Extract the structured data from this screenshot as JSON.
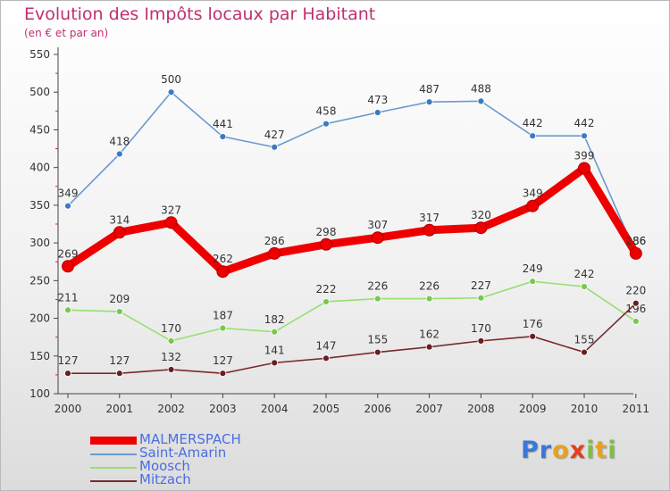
{
  "header": {
    "title": "Evolution des Impôts locaux par Habitant",
    "subtitle": "(en € et par an)"
  },
  "brand": {
    "letters": [
      {
        "ch": "P",
        "color": "#3a78d8"
      },
      {
        "ch": "r",
        "color": "#3a78d8"
      },
      {
        "ch": "o",
        "color": "#e8a020"
      },
      {
        "ch": "x",
        "color": "#e04020"
      },
      {
        "ch": "i",
        "color": "#7cc040"
      },
      {
        "ch": "t",
        "color": "#e8a020"
      },
      {
        "ch": "i",
        "color": "#7cc040"
      }
    ]
  },
  "chart_data": {
    "type": "line",
    "title": "Evolution des Impôts locaux par Habitant",
    "subtitle": "(en € et par an)",
    "xlabel": "",
    "ylabel": "",
    "ylim": [
      100,
      550
    ],
    "yticks": [
      100,
      150,
      200,
      250,
      300,
      350,
      400,
      450,
      500,
      550
    ],
    "grid": false,
    "legend_position": "bottom-left",
    "categories": [
      "2000",
      "2001",
      "2002",
      "2003",
      "2004",
      "2005",
      "2006",
      "2007",
      "2008",
      "2009",
      "2010",
      "2011"
    ],
    "series": [
      {
        "name": "MALMERSPACH",
        "color": "#ee0000",
        "thick": true,
        "values": [
          269,
          314,
          327,
          262,
          286,
          298,
          307,
          317,
          320,
          349,
          399,
          286
        ]
      },
      {
        "name": "Saint-Amarin",
        "color": "#6a9ad0",
        "marker": "#3a7ac0",
        "thick": false,
        "values": [
          349,
          418,
          500,
          441,
          427,
          458,
          473,
          487,
          488,
          442,
          442,
          286
        ]
      },
      {
        "name": "Moosch",
        "color": "#96e070",
        "marker": "#78c850",
        "thick": false,
        "values": [
          211,
          209,
          170,
          187,
          182,
          222,
          226,
          226,
          227,
          249,
          242,
          196
        ]
      },
      {
        "name": "Mitzach",
        "color": "#7a2a2a",
        "marker": "#6a1e1e",
        "thick": false,
        "values": [
          127,
          127,
          132,
          127,
          141,
          147,
          155,
          162,
          170,
          176,
          155,
          220
        ]
      }
    ]
  }
}
